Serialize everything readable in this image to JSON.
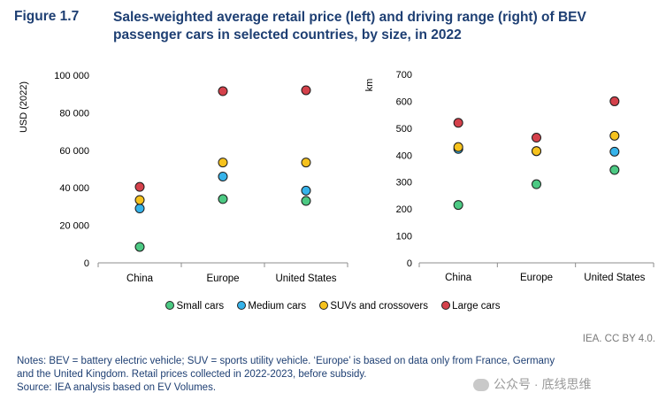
{
  "figure": {
    "label": "Figure 1.7",
    "title": "Sales-weighted average retail price (left) and driving range (right) of BEV passenger cars in selected countries, by size, in 2022"
  },
  "series_meta": [
    {
      "key": "small",
      "name": "Small cars",
      "color": "#4cc983"
    },
    {
      "key": "medium",
      "name": "Medium cars",
      "color": "#36b3ea"
    },
    {
      "key": "suv",
      "name": "SUVs and crossovers",
      "color": "#f6c21d"
    },
    {
      "key": "large",
      "name": "Large cars",
      "color": "#d4414b"
    }
  ],
  "chart_data": [
    {
      "type": "scatter",
      "title": "Sales-weighted average retail price",
      "ylabel": "USD (2022)",
      "xlabel": "",
      "ylim": [
        0,
        100000
      ],
      "yticks": [
        0,
        20000,
        40000,
        60000,
        80000,
        100000
      ],
      "ytick_labels": [
        "0",
        "20 000",
        "40 000",
        "60 000",
        "80 000",
        "100 000"
      ],
      "categories": [
        "China",
        "Europe",
        "United States"
      ],
      "series": [
        {
          "name": "Small cars",
          "values": [
            8500,
            34000,
            33000
          ]
        },
        {
          "name": "Medium cars",
          "values": [
            29000,
            46000,
            38500
          ]
        },
        {
          "name": "SUVs and crossovers",
          "values": [
            33500,
            53500,
            53500
          ]
        },
        {
          "name": "Large cars",
          "values": [
            40500,
            91500,
            92000
          ]
        }
      ]
    },
    {
      "type": "scatter",
      "title": "Driving range",
      "ylabel": "km",
      "xlabel": "",
      "ylim": [
        0,
        700
      ],
      "yticks": [
        0,
        100,
        200,
        300,
        400,
        500,
        600,
        700
      ],
      "ytick_labels": [
        "0",
        "100",
        "200",
        "300",
        "400",
        "500",
        "600",
        "700"
      ],
      "categories": [
        "China",
        "Europe",
        "United States"
      ],
      "series": [
        {
          "name": "Small cars",
          "values": [
            215,
            292,
            345
          ]
        },
        {
          "name": "Medium cars",
          "values": [
            423,
            415,
            413
          ]
        },
        {
          "name": "SUVs and crossovers",
          "values": [
            430,
            415,
            472
          ]
        },
        {
          "name": "Large cars",
          "values": [
            520,
            465,
            600
          ]
        }
      ]
    }
  ],
  "credit": "IEA. CC BY 4.0.",
  "notes": {
    "line1": "Notes: BEV = battery electric vehicle; SUV = sports utility vehicle. ‘Europe’ is based on data only from France, Germany",
    "line2": "and the United Kingdom. Retail prices collected in 2022-2023, before subsidy.",
    "source": "Source: IEA analysis based on EV Volumes."
  },
  "watermark": "公众号 · 底线思维"
}
